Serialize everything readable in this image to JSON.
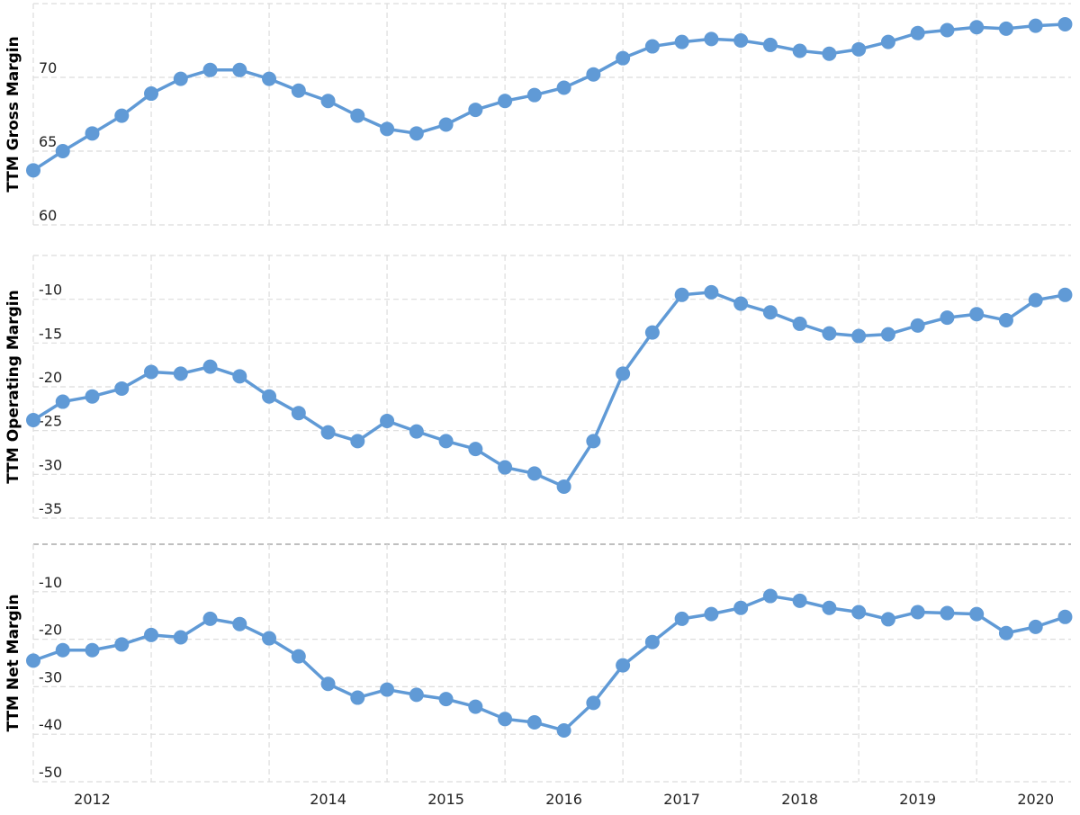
{
  "chart_data": [
    {
      "type": "line",
      "y_label": "TTM Gross Margin",
      "color": "#609ad6",
      "grid": true,
      "x": [
        2012,
        2012.25,
        2012.5,
        2012.75,
        2013,
        2013.25,
        2013.5,
        2013.75,
        2014,
        2014.25,
        2014.5,
        2014.75,
        2015,
        2015.25,
        2015.5,
        2015.75,
        2016,
        2016.25,
        2016.5,
        2016.75,
        2017,
        2017.25,
        2017.5,
        2017.75,
        2018,
        2018.25,
        2018.5,
        2018.75,
        2019,
        2019.25,
        2019.5,
        2019.75,
        2020,
        2020.25,
        2020.5,
        2020.75
      ],
      "values": [
        63.7,
        65.0,
        66.2,
        67.4,
        68.9,
        69.9,
        70.5,
        70.5,
        69.9,
        69.1,
        68.4,
        67.4,
        66.5,
        66.2,
        66.8,
        67.8,
        68.4,
        68.8,
        69.3,
        70.2,
        71.3,
        72.1,
        72.4,
        72.6,
        72.5,
        72.2,
        71.8,
        71.6,
        71.9,
        72.4,
        73.0,
        73.2,
        73.4,
        73.3,
        73.5,
        73.6
      ],
      "xlim": [
        2012,
        2020.8
      ],
      "xgrid": [
        2012,
        2013,
        2014,
        2015,
        2016,
        2017,
        2018,
        2019,
        2020
      ],
      "ylim": [
        60,
        75
      ],
      "yticks": [
        60,
        65,
        70
      ]
    },
    {
      "type": "line",
      "y_label": "TTM Operating Margin",
      "color": "#609ad6",
      "grid": true,
      "x": [
        2012,
        2012.25,
        2012.5,
        2012.75,
        2013,
        2013.25,
        2013.5,
        2013.75,
        2014,
        2014.25,
        2014.5,
        2014.75,
        2015,
        2015.25,
        2015.5,
        2015.75,
        2016,
        2016.25,
        2016.5,
        2016.75,
        2017,
        2017.25,
        2017.5,
        2017.75,
        2018,
        2018.25,
        2018.5,
        2018.75,
        2019,
        2019.25,
        2019.5,
        2019.75,
        2020,
        2020.25,
        2020.5,
        2020.75
      ],
      "values": [
        -23.8,
        -21.7,
        -21.1,
        -20.2,
        -18.3,
        -18.5,
        -17.7,
        -18.8,
        -21.1,
        -23.0,
        -25.2,
        -26.2,
        -23.9,
        -25.1,
        -26.2,
        -27.1,
        -29.2,
        -29.9,
        -31.4,
        -26.2,
        -18.5,
        -13.8,
        -9.5,
        -9.2,
        -10.5,
        -11.5,
        -12.8,
        -13.9,
        -14.2,
        -14.0,
        -13.0,
        -12.1,
        -11.7,
        -12.4,
        -10.1,
        -9.5
      ],
      "xlim": [
        2012,
        2020.8
      ],
      "xgrid": [
        2012,
        2013,
        2014,
        2015,
        2016,
        2017,
        2018,
        2019,
        2020
      ],
      "ylim": [
        -35,
        -5
      ],
      "yticks": [
        -35,
        -30,
        -25,
        -20,
        -15,
        -10
      ]
    },
    {
      "type": "line",
      "y_label": "TTM Net Margin",
      "color": "#609ad6",
      "grid": true,
      "x": [
        2012,
        2012.25,
        2012.5,
        2012.75,
        2013,
        2013.25,
        2013.5,
        2013.75,
        2014,
        2014.25,
        2014.5,
        2014.75,
        2015,
        2015.25,
        2015.5,
        2015.75,
        2016,
        2016.25,
        2016.5,
        2016.75,
        2017,
        2017.25,
        2017.5,
        2017.75,
        2018,
        2018.25,
        2018.5,
        2018.75,
        2019,
        2019.25,
        2019.5,
        2019.75,
        2020,
        2020.25,
        2020.5,
        2020.75
      ],
      "values": [
        -24.5,
        -22.3,
        -22.3,
        -21.1,
        -19.1,
        -19.6,
        -15.7,
        -16.8,
        -19.8,
        -23.6,
        -29.4,
        -32.3,
        -30.6,
        -31.7,
        -32.6,
        -34.2,
        -36.8,
        -37.5,
        -39.2,
        -33.4,
        -25.5,
        -20.6,
        -15.7,
        -14.7,
        -13.4,
        -10.9,
        -11.9,
        -13.4,
        -14.3,
        -15.8,
        -14.3,
        -14.5,
        -14.7,
        -18.7,
        -17.4,
        -15.3
      ],
      "xlim": [
        2012,
        2020.8
      ],
      "xgrid": [
        2012,
        2013,
        2014,
        2015,
        2016,
        2017,
        2018,
        2019,
        2020
      ],
      "ylim": [
        -50,
        0
      ],
      "yticks": [
        -50,
        -40,
        -30,
        -20,
        -10
      ],
      "xticks": [
        {
          "value": 2012.5,
          "label": "2012"
        },
        {
          "value": 2014.5,
          "label": "2014"
        },
        {
          "value": 2015.5,
          "label": "2015"
        },
        {
          "value": 2016.5,
          "label": "2016"
        },
        {
          "value": 2017.5,
          "label": "2017"
        },
        {
          "value": 2018.5,
          "label": "2018"
        },
        {
          "value": 2019.5,
          "label": "2019"
        },
        {
          "value": 2020.5,
          "label": "2020"
        }
      ]
    }
  ]
}
